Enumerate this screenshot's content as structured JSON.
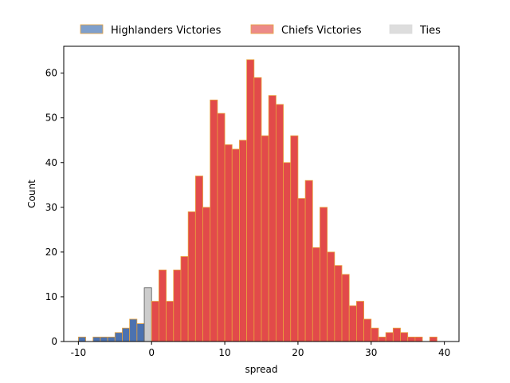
{
  "chart_data": {
    "type": "bar",
    "title": "",
    "xlabel": "spread",
    "ylabel": "Count",
    "xlim": [
      -12,
      42
    ],
    "ylim": [
      0,
      66
    ],
    "xticks": [
      -10,
      0,
      10,
      20,
      30,
      40
    ],
    "yticks": [
      0,
      10,
      20,
      30,
      40,
      50,
      60
    ],
    "bin_width": 1,
    "grid": false,
    "legend_position": "top",
    "series": [
      {
        "name": "Highlanders Victories",
        "color": "#4c72b0",
        "edge_color": "#e8a33d",
        "bins": [
          {
            "x": -10,
            "y": 1
          },
          {
            "x": -8,
            "y": 1
          },
          {
            "x": -7,
            "y": 1
          },
          {
            "x": -6,
            "y": 1
          },
          {
            "x": -5,
            "y": 2
          },
          {
            "x": -4,
            "y": 3
          },
          {
            "x": -3,
            "y": 5
          },
          {
            "x": -2,
            "y": 4
          }
        ]
      },
      {
        "name": "Ties",
        "color": "#cccccc",
        "edge_color": "#555555",
        "bins": [
          {
            "x": -1,
            "y": 12
          }
        ]
      },
      {
        "name": "Chiefs Victories",
        "color": "#e24a4a",
        "edge_color": "#e8a33d",
        "bins": [
          {
            "x": 0,
            "y": 9
          },
          {
            "x": 1,
            "y": 16
          },
          {
            "x": 2,
            "y": 9
          },
          {
            "x": 3,
            "y": 16
          },
          {
            "x": 4,
            "y": 19
          },
          {
            "x": 5,
            "y": 29
          },
          {
            "x": 6,
            "y": 37
          },
          {
            "x": 7,
            "y": 30
          },
          {
            "x": 8,
            "y": 54
          },
          {
            "x": 9,
            "y": 51
          },
          {
            "x": 10,
            "y": 44
          },
          {
            "x": 11,
            "y": 43
          },
          {
            "x": 12,
            "y": 45
          },
          {
            "x": 13,
            "y": 63
          },
          {
            "x": 14,
            "y": 59
          },
          {
            "x": 15,
            "y": 46
          },
          {
            "x": 16,
            "y": 55
          },
          {
            "x": 17,
            "y": 53
          },
          {
            "x": 18,
            "y": 40
          },
          {
            "x": 19,
            "y": 46
          },
          {
            "x": 20,
            "y": 32
          },
          {
            "x": 21,
            "y": 36
          },
          {
            "x": 22,
            "y": 21
          },
          {
            "x": 23,
            "y": 30
          },
          {
            "x": 24,
            "y": 20
          },
          {
            "x": 25,
            "y": 17
          },
          {
            "x": 26,
            "y": 15
          },
          {
            "x": 27,
            "y": 8
          },
          {
            "x": 28,
            "y": 9
          },
          {
            "x": 29,
            "y": 5
          },
          {
            "x": 30,
            "y": 3
          },
          {
            "x": 31,
            "y": 1
          },
          {
            "x": 32,
            "y": 2
          },
          {
            "x": 33,
            "y": 3
          },
          {
            "x": 34,
            "y": 2
          },
          {
            "x": 35,
            "y": 1
          },
          {
            "x": 36,
            "y": 1
          },
          {
            "x": 38,
            "y": 1
          }
        ]
      }
    ],
    "legend": [
      {
        "label": "Highlanders Victories",
        "color": "#7f9fcb",
        "edge_color": "#e8a33d"
      },
      {
        "label": "Chiefs Victories",
        "color": "#ec8a88",
        "edge_color": "#e8a33d"
      },
      {
        "label": "Ties",
        "color": "#dddddd",
        "edge_color": "#dddddd"
      }
    ]
  }
}
